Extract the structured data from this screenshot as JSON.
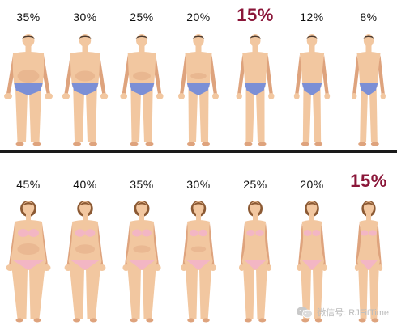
{
  "men": {
    "percentages": [
      "35%",
      "30%",
      "25%",
      "20%",
      "15%",
      "12%",
      "8%"
    ],
    "fatness": [
      1.0,
      0.82,
      0.66,
      0.5,
      0.35,
      0.22,
      0.1
    ],
    "highlighted_index": 4
  },
  "women": {
    "percentages": [
      "45%",
      "40%",
      "35%",
      "30%",
      "25%",
      "20%",
      "15%"
    ],
    "fatness": [
      1.0,
      0.82,
      0.66,
      0.5,
      0.35,
      0.22,
      0.1
    ],
    "highlighted_index": 6
  },
  "colors": {
    "skin": "#f2c7a0",
    "skin_shade": "#dea37d",
    "men_briefs": "#7b8fd6",
    "women_swimwear": "#f3b6c4",
    "highlight_text": "#8a1538",
    "male_hair": "#4a3a30",
    "female_hair": "#8c5a34"
  },
  "watermark": {
    "icon": "wechat-icon",
    "text": "微信号: RJFitTime"
  }
}
